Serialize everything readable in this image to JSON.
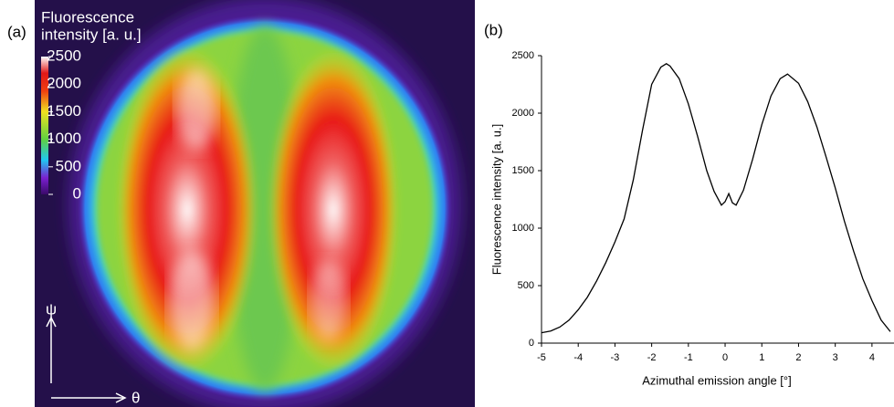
{
  "chart_data": [
    {
      "type": "image",
      "panel": "(a)",
      "colorbar_title": [
        "Fluorescence",
        "intensity [a. u.]"
      ],
      "clim": [
        0,
        2500
      ],
      "cticks": [
        0,
        500,
        1000,
        1500,
        2000,
        2500
      ],
      "y_label": "ψ",
      "x_label": "θ"
    },
    {
      "type": "line",
      "panel": "(b)",
      "x_label": "Azimuthal emission angle [°]",
      "y_label": "Fluorescence intensity [a. u.]",
      "xlim": [
        -5,
        4.6
      ],
      "ylim": [
        0,
        2500
      ],
      "xticks": [
        -5,
        -4,
        -3,
        -2,
        -1,
        0,
        1,
        2,
        3,
        4
      ],
      "yticks": [
        0,
        500,
        1000,
        1500,
        2000,
        2500
      ],
      "series": [
        {
          "color": "#000000",
          "x": [
            -5,
            -4.75,
            -4.5,
            -4.25,
            -4,
            -3.75,
            -3.5,
            -3.25,
            -3,
            -2.75,
            -2.5,
            -2.25,
            -2,
            -1.75,
            -1.6,
            -1.5,
            -1.25,
            -1,
            -0.75,
            -0.5,
            -0.3,
            -0.1,
            0,
            0.1,
            0.2,
            0.3,
            0.5,
            0.75,
            1,
            1.25,
            1.5,
            1.7,
            2,
            2.25,
            2.5,
            2.75,
            3,
            3.25,
            3.5,
            3.75,
            4,
            4.25,
            4.5
          ],
          "values": [
            90,
            105,
            140,
            200,
            290,
            400,
            540,
            700,
            880,
            1080,
            1420,
            1850,
            2250,
            2400,
            2430,
            2410,
            2300,
            2080,
            1800,
            1500,
            1320,
            1200,
            1230,
            1300,
            1220,
            1200,
            1330,
            1600,
            1900,
            2150,
            2300,
            2340,
            2260,
            2100,
            1880,
            1620,
            1350,
            1060,
            800,
            560,
            370,
            200,
            100
          ]
        }
      ]
    }
  ]
}
